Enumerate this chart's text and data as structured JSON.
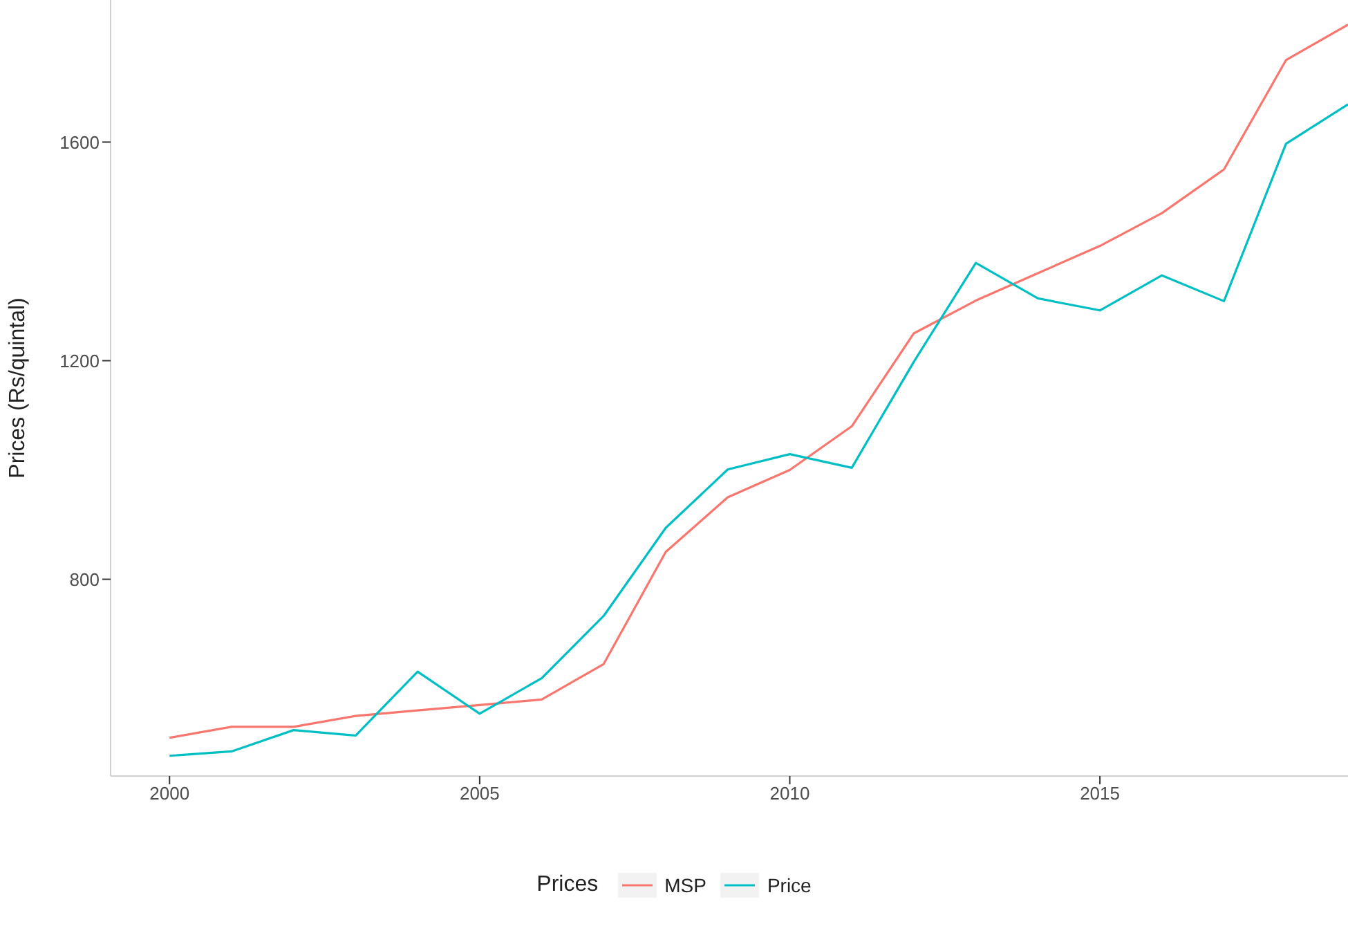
{
  "chart_data": {
    "type": "line",
    "ylabel": "Prices (Rs/quintal)",
    "legend_title": "Prices",
    "x": [
      2000,
      2001,
      2002,
      2003,
      2004,
      2005,
      2006,
      2007,
      2008,
      2009,
      2010,
      2011,
      2012,
      2013,
      2014,
      2015,
      2016,
      2017,
      2018,
      2019
    ],
    "series": [
      {
        "name": "MSP",
        "color": "#f8766d",
        "values": [
          510,
          530,
          530,
          550,
          560,
          570,
          580,
          645,
          850,
          950,
          1000,
          1080,
          1250,
          1310,
          1360,
          1410,
          1470,
          1550,
          1750,
          1815
        ]
      },
      {
        "name": "Price",
        "color": "#00bfc4",
        "values": [
          477,
          485,
          524,
          514,
          631,
          554,
          619,
          733,
          894,
          1001,
          1029,
          1004,
          1198,
          1379,
          1314,
          1292,
          1356,
          1309,
          1597,
          1669
        ]
      }
    ],
    "xlim": [
      1999.05,
      2019
    ],
    "xticks": [
      2000,
      2005,
      2010,
      2015
    ],
    "ylim": [
      440,
      1860
    ],
    "yticks": [
      800,
      1200,
      1600
    ],
    "grid": false,
    "legend": "bottom",
    "marker": "none",
    "line_style": "solid"
  }
}
